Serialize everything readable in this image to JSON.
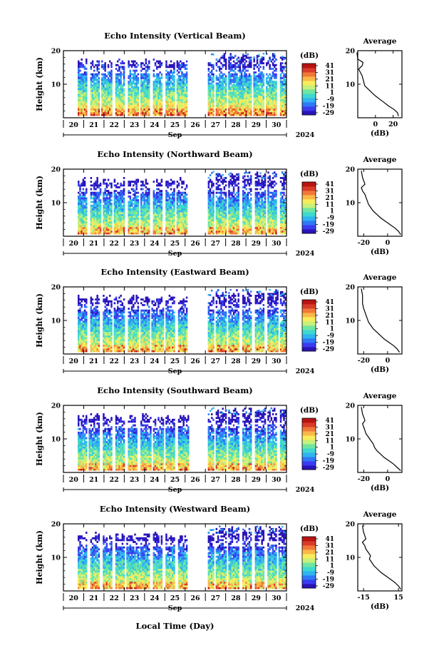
{
  "figure": {
    "xaxis_title": "Local Time (Day)",
    "month_label": "Sep",
    "year_label": "2024",
    "day_ticks": [
      "20",
      "21",
      "22",
      "23",
      "24",
      "25",
      "26",
      "27",
      "28",
      "29",
      "30"
    ],
    "colorbar": {
      "unit": "(dB)",
      "tick_labels": [
        "41",
        "31",
        "21",
        "11",
        "1",
        "-9",
        "-19",
        "-29"
      ],
      "colors": [
        "#2a14b8",
        "#3a3cf0",
        "#2f78f5",
        "#2fb4f0",
        "#3fd8d0",
        "#6fe6a0",
        "#c8f07a",
        "#f8ec5a",
        "#f8b848",
        "#f07838",
        "#d83c28",
        "#b81410"
      ]
    }
  },
  "chart_data": [
    {
      "type": "heatmap",
      "title": "Echo Intensity (Vertical Beam)",
      "ylabel": "Height (km)",
      "ylim": [
        0,
        20
      ],
      "yticks": [
        "10",
        "20"
      ],
      "xlim": [
        "2024-09-19",
        "2024-09-30"
      ],
      "colorbar_range": [
        -29,
        41
      ],
      "data_gap": [
        "2024-09-25",
        "2024-09-26"
      ],
      "profile": {
        "title": "Average",
        "xlabel": "(dB)",
        "xlim": [
          -20,
          30
        ],
        "xticks": [
          "0",
          "20"
        ],
        "ylim": [
          0,
          20
        ],
        "yticks": [
          "10",
          "20"
        ],
        "x": [
          26,
          25,
          21,
          15,
          10,
          5,
          0,
          -4,
          -8,
          -12,
          -13,
          -14,
          -15,
          -17,
          -19,
          -15,
          -14,
          -20,
          -21
        ],
        "y": [
          0.5,
          1.5,
          2.5,
          3.5,
          4.5,
          5.5,
          6.5,
          7.5,
          8.5,
          9.5,
          10.5,
          11.5,
          12.5,
          13.5,
          14.5,
          15.5,
          16.5,
          17.5,
          19.5
        ]
      }
    },
    {
      "type": "heatmap",
      "title": "Echo Intensity (Northward Beam)",
      "ylabel": "Height (km)",
      "ylim": [
        0,
        20
      ],
      "yticks": [
        "10",
        "20"
      ],
      "xlim": [
        "2024-09-19",
        "2024-09-30"
      ],
      "colorbar_range": [
        -29,
        41
      ],
      "data_gap": [
        "2024-09-25",
        "2024-09-26"
      ],
      "profile": {
        "title": "Average",
        "xlabel": "(dB)",
        "xlim": [
          -25,
          12
        ],
        "xticks": [
          "-20",
          "0"
        ],
        "ylim": [
          0,
          20
        ],
        "yticks": [
          "10",
          "20"
        ],
        "x": [
          11,
          9,
          6,
          2,
          -2,
          -6,
          -9,
          -12,
          -14,
          -16,
          -17,
          -18,
          -19,
          -21,
          -22,
          -19,
          -21,
          -22
        ],
        "y": [
          0.5,
          1.5,
          2.5,
          3.5,
          4.5,
          5.5,
          6.5,
          7.5,
          8.5,
          9.5,
          10.5,
          11.5,
          12.5,
          13.5,
          14.5,
          15.5,
          17.5,
          19.5
        ]
      }
    },
    {
      "type": "heatmap",
      "title": "Echo Intensity (Eastward Beam)",
      "ylabel": "Height (km)",
      "ylim": [
        0,
        20
      ],
      "yticks": [
        "10",
        "20"
      ],
      "xlim": [
        "2024-09-19",
        "2024-09-30"
      ],
      "colorbar_range": [
        -29,
        41
      ],
      "data_gap": [
        "2024-09-25",
        "2024-09-26"
      ],
      "profile": {
        "title": "Average",
        "xlabel": "(dB)",
        "xlim": [
          -25,
          12
        ],
        "xticks": [
          "-20",
          "0"
        ],
        "ylim": [
          0,
          20
        ],
        "yticks": [
          "10",
          "20"
        ],
        "x": [
          10,
          8,
          5,
          1,
          -3,
          -6,
          -9,
          -12,
          -14,
          -16,
          -17,
          -18,
          -19,
          -20,
          -21,
          -21,
          -22
        ],
        "y": [
          0.5,
          1.5,
          2.5,
          3.5,
          4.5,
          5.5,
          6.5,
          7.5,
          8.5,
          9.5,
          10.5,
          11.5,
          12.5,
          13.5,
          15.0,
          17.5,
          19.5
        ]
      }
    },
    {
      "type": "heatmap",
      "title": "Echo Intensity (Southward Beam)",
      "ylabel": "Height (km)",
      "ylim": [
        0,
        20
      ],
      "yticks": [
        "10",
        "20"
      ],
      "xlim": [
        "2024-09-19",
        "2024-09-30"
      ],
      "colorbar_range": [
        -29,
        41
      ],
      "data_gap": [
        "2024-09-25",
        "2024-09-26"
      ],
      "profile": {
        "title": "Average",
        "xlabel": "(dB)",
        "xlim": [
          -25,
          12
        ],
        "xticks": [
          "-20",
          "0"
        ],
        "ylim": [
          0,
          20
        ],
        "yticks": [
          "10",
          "20"
        ],
        "x": [
          11,
          8,
          5,
          1,
          -3,
          -6,
          -9,
          -11,
          -12,
          -14,
          -16,
          -18,
          -19,
          -20,
          -21,
          -19,
          -21,
          -22
        ],
        "y": [
          0.5,
          1.5,
          2.5,
          3.5,
          4.5,
          5.5,
          6.5,
          7.5,
          8.5,
          9.5,
          10.5,
          11.5,
          12.5,
          13.5,
          14.5,
          15.5,
          17.5,
          19.5
        ]
      }
    },
    {
      "type": "heatmap",
      "title": "Echo Intensity (Westward Beam)",
      "ylabel": "Height (km)",
      "ylim": [
        0,
        20
      ],
      "yticks": [
        "10",
        "20"
      ],
      "xlim": [
        "2024-09-19",
        "2024-09-30"
      ],
      "colorbar_range": [
        -29,
        41
      ],
      "data_gap": [
        "2024-09-25",
        "2024-09-26"
      ],
      "profile": {
        "title": "Average",
        "xlabel": "(dB)",
        "xlim": [
          -20,
          18
        ],
        "xticks": [
          "-15",
          "15"
        ],
        "ylim": [
          0,
          20
        ],
        "yticks": [
          "10",
          "20"
        ],
        "x": [
          17,
          15,
          12,
          8,
          4,
          0,
          -3,
          -6,
          -8,
          -10,
          -9,
          -11,
          -13,
          -14,
          -16,
          -13,
          -15,
          -16
        ],
        "y": [
          0.5,
          1.5,
          2.5,
          3.5,
          4.5,
          5.5,
          6.5,
          7.5,
          8.5,
          9.5,
          10.5,
          11.5,
          12.5,
          13.5,
          14.5,
          15.5,
          17.5,
          19.5
        ]
      }
    }
  ]
}
